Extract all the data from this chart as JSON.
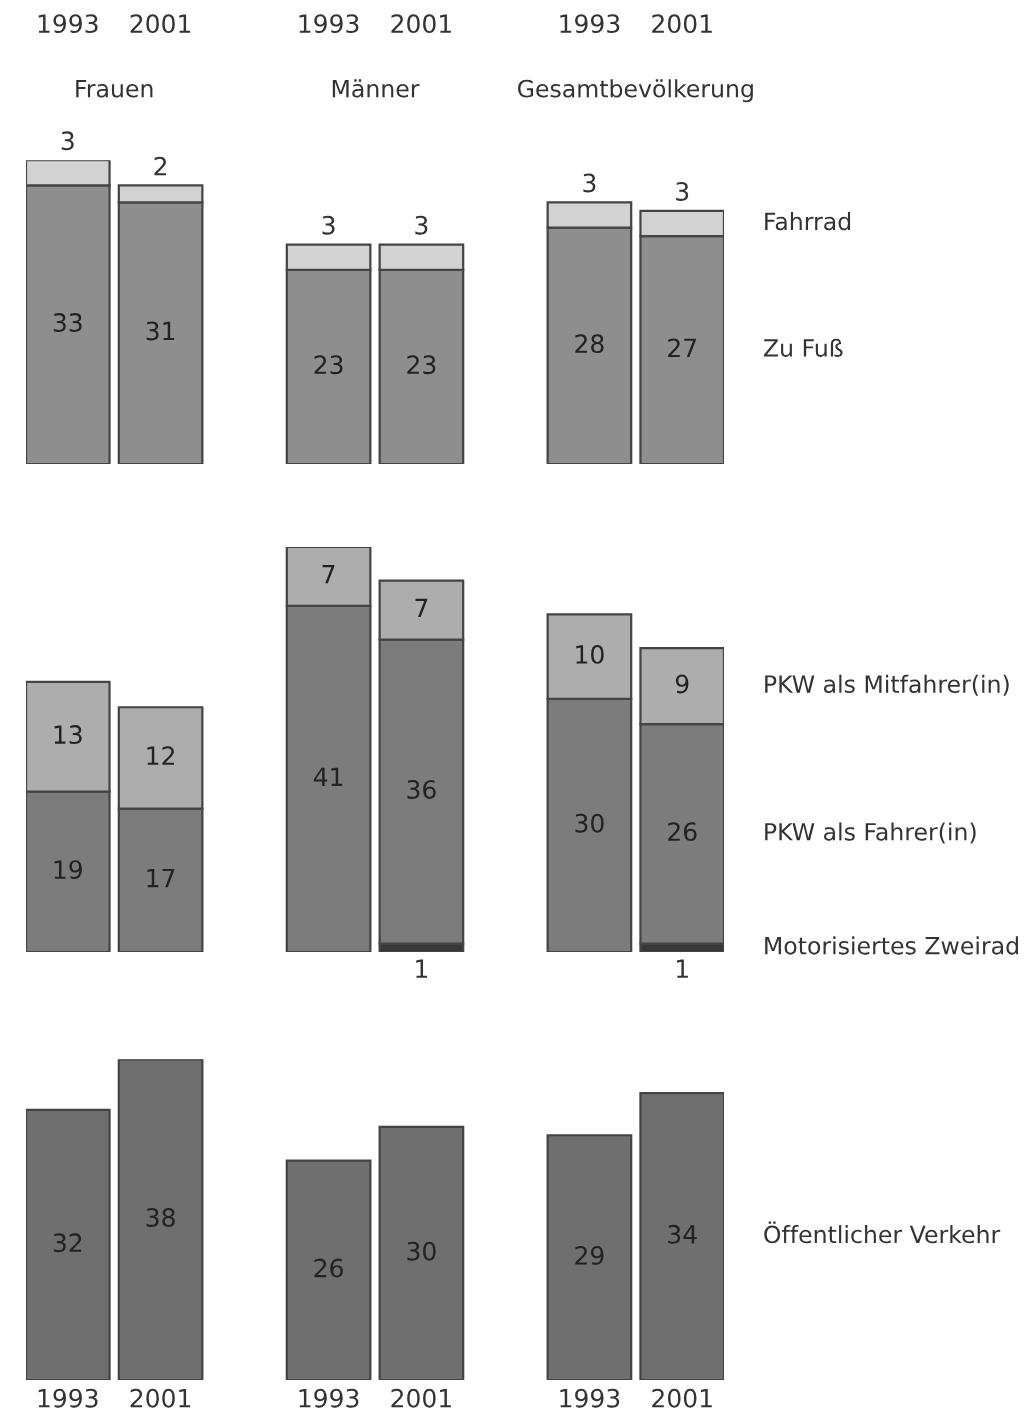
{
  "chart_data": [
    {
      "type": "bar",
      "stacked": true,
      "tick_labels": "x",
      "data_labels": true,
      "annotations": [
        "Frauen",
        "Männer",
        "Gesamtbevölkerung"
      ],
      "categories": [
        "1993",
        "2001",
        "1993",
        "2001",
        "1993",
        "2001"
      ],
      "series": [
        {
          "name": "Zu Fuß",
          "color": "#8e8e8e",
          "values": [
            33,
            31,
            23,
            23,
            28,
            27
          ]
        },
        {
          "name": "Fahrrad",
          "color": "#d2d2d2",
          "values": [
            3,
            2,
            3,
            3,
            3,
            3
          ]
        }
      ]
    },
    {
      "type": "bar",
      "stacked": true,
      "tick_labels": false,
      "data_labels": true,
      "categories": [
        "1993",
        "2001",
        "1993",
        "2001",
        "1993",
        "2001"
      ],
      "series": [
        {
          "name": "Motorisiertes Zweirad",
          "color": "#383838",
          "values": [
            null,
            null,
            null,
            1,
            null,
            1
          ]
        },
        {
          "name": "PKW als Fahrer(in)",
          "color": "#7c7c7c",
          "values": [
            19,
            17,
            41,
            36,
            30,
            26
          ]
        },
        {
          "name": "PKW als Mitfahrer(in)",
          "color": "#adadad",
          "values": [
            13,
            12,
            7,
            7,
            10,
            9
          ]
        }
      ]
    },
    {
      "type": "bar",
      "stacked": true,
      "tick_labels": "x",
      "data_labels": true,
      "categories": [
        "1993",
        "2001",
        "1993",
        "2001",
        "1993",
        "2001"
      ],
      "series": [
        {
          "name": "Öffentlicher Verkehr",
          "color": "#6f6f6f",
          "values": [
            32,
            38,
            26,
            30,
            29,
            34
          ]
        }
      ]
    }
  ]
}
